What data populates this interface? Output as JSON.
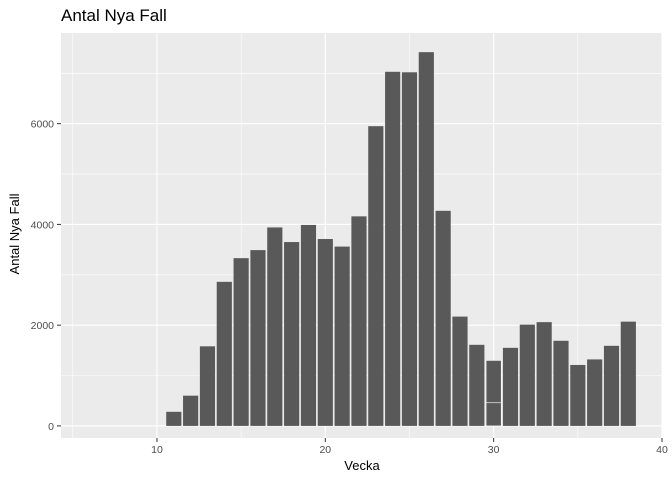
{
  "chart_data": {
    "type": "bar",
    "title": "Antal Nya Fall",
    "xlabel": "Vecka",
    "ylabel": "Antal Nya Fall",
    "xlim": [
      4.3,
      40
    ],
    "ylim": [
      -240,
      7800
    ],
    "xticks": [
      10,
      20,
      30,
      40
    ],
    "yticks": [
      0,
      2000,
      4000,
      6000
    ],
    "grid": true,
    "legend": "none",
    "colors": {
      "panel": "#ebebeb",
      "bar": "#595959",
      "grid": "#ffffff"
    },
    "x": [
      11,
      12,
      13,
      14,
      15,
      16,
      17,
      18,
      19,
      20,
      21,
      22,
      23,
      24,
      25,
      26,
      27,
      28,
      29,
      30,
      31,
      32,
      33,
      34,
      35,
      36,
      37,
      38
    ],
    "values": [
      280,
      600,
      1580,
      2860,
      3330,
      3490,
      3940,
      3650,
      3990,
      3710,
      3560,
      4160,
      5950,
      7030,
      7020,
      7420,
      4270,
      2170,
      1610,
      1300,
      1550,
      2010,
      2060,
      1690,
      1210,
      1320,
      1590,
      2070
    ],
    "stacked_segments": [
      {
        "x": 30,
        "values": [
          460,
          840
        ]
      }
    ]
  }
}
